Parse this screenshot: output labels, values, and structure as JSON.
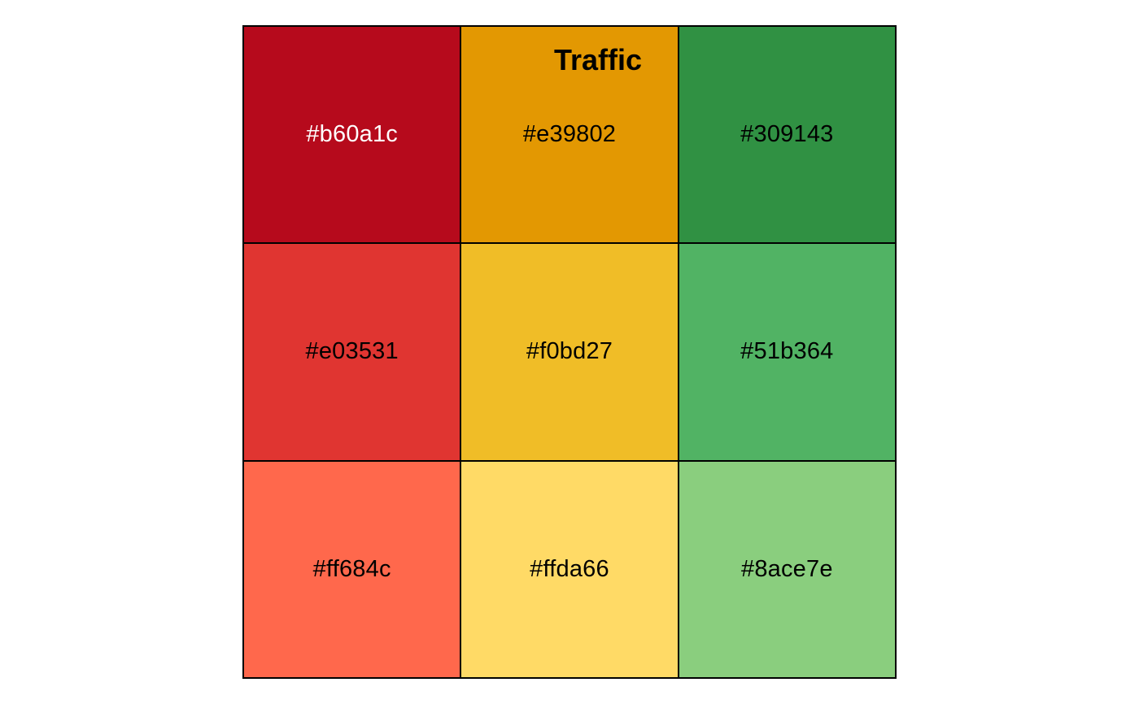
{
  "chart_data": {
    "type": "heatmap",
    "title": "Traffic",
    "grid": {
      "rows": 3,
      "cols": 3
    },
    "cells": [
      {
        "label": "#b60a1c",
        "color": "#b60a1c",
        "text_color": "#ffffff"
      },
      {
        "label": "#e39802",
        "color": "#e39802",
        "text_color": "#000000"
      },
      {
        "label": "#309143",
        "color": "#309143",
        "text_color": "#000000"
      },
      {
        "label": "#e03531",
        "color": "#e03531",
        "text_color": "#000000"
      },
      {
        "label": "#f0bd27",
        "color": "#f0bd27",
        "text_color": "#000000"
      },
      {
        "label": "#51b364",
        "color": "#51b364",
        "text_color": "#000000"
      },
      {
        "label": "#ff684c",
        "color": "#ff684c",
        "text_color": "#000000"
      },
      {
        "label": "#ffda66",
        "color": "#ffda66",
        "text_color": "#000000"
      },
      {
        "label": "#8ace7e",
        "color": "#8ace7e",
        "text_color": "#000000"
      }
    ]
  }
}
